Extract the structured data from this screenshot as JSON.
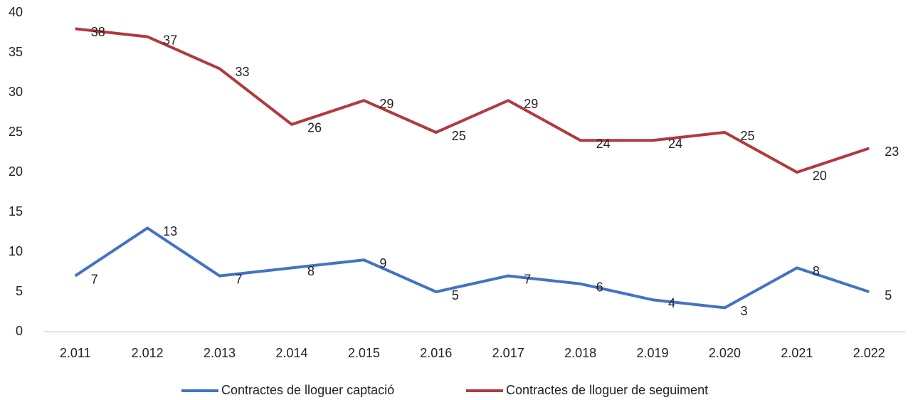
{
  "chart_data": {
    "type": "line",
    "categories": [
      "2.011",
      "2.012",
      "2.013",
      "2.014",
      "2.015",
      "2.016",
      "2.017",
      "2.018",
      "2.019",
      "2.020",
      "2.021",
      "2.022"
    ],
    "series": [
      {
        "name": "Contractes de lloguer captació",
        "color": "#4472c4",
        "values": [
          7,
          13,
          7,
          8,
          9,
          5,
          7,
          6,
          4,
          3,
          8,
          5
        ]
      },
      {
        "name": "Contractes de lloguer de seguiment",
        "color": "#b03a3e",
        "values": [
          38,
          37,
          33,
          26,
          29,
          25,
          29,
          24,
          24,
          25,
          20,
          23
        ]
      }
    ],
    "ylim": [
      0,
      40
    ],
    "yticks": [
      0,
      5,
      10,
      15,
      20,
      25,
      30,
      35,
      40
    ],
    "grid": false,
    "legend": "bottom"
  }
}
